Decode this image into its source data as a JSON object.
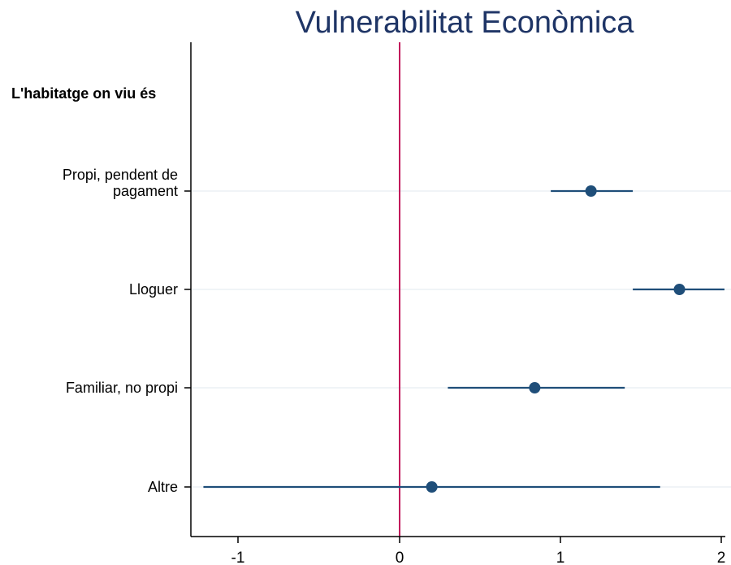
{
  "chart_data": {
    "type": "scatter",
    "subtype": "coefficient-plot-with-confidence-intervals",
    "title": "Vulnerabilitat Econòmica",
    "group_header": "L'habitatge on viu és",
    "categories": [
      [
        "Propi, pendent de",
        "pagament"
      ],
      [
        "Lloguer"
      ],
      [
        "Familiar, no propi"
      ],
      [
        "Altre"
      ]
    ],
    "points": [
      {
        "estimate": 1.19,
        "ci_low": 0.94,
        "ci_high": 1.45
      },
      {
        "estimate": 1.74,
        "ci_low": 1.45,
        "ci_high": 2.02
      },
      {
        "estimate": 0.84,
        "ci_low": 0.3,
        "ci_high": 1.4
      },
      {
        "estimate": 0.2,
        "ci_low": -1.22,
        "ci_high": 1.62
      }
    ],
    "x_ticks": [
      "-1",
      "0",
      "1",
      "2"
    ],
    "xlim": [
      -1.3,
      2.05
    ],
    "reference_line": 0,
    "grid": true,
    "colors": {
      "title": "#1f3566",
      "marker": "#1f4e79",
      "ci_line": "#1f4e79",
      "reference_line": "#c2185b",
      "grid": "#e6eef2",
      "axis": "#000000"
    }
  }
}
